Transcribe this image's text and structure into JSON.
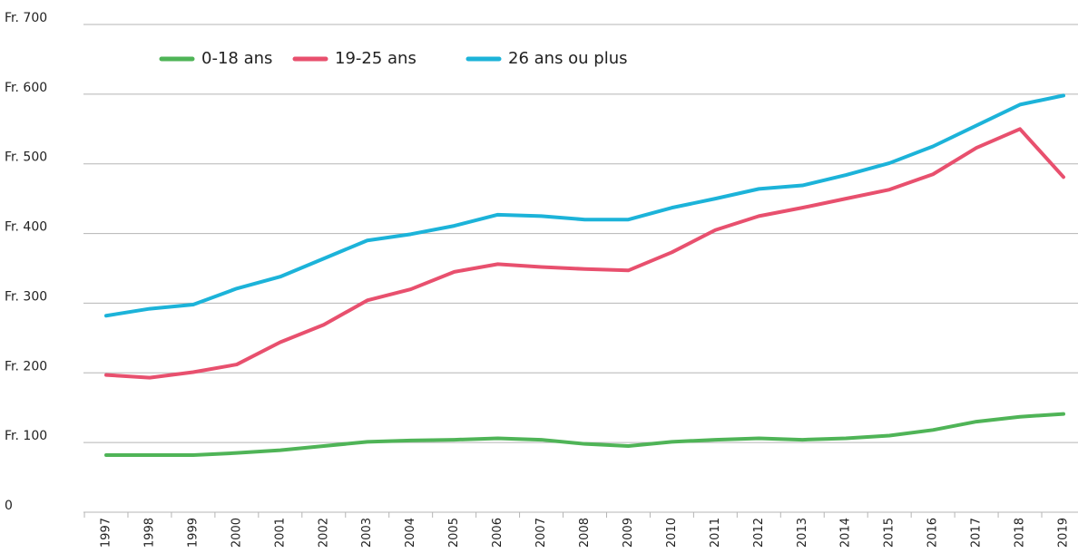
{
  "chart_data": {
    "type": "line",
    "categories": [
      "1997",
      "1998",
      "1999",
      "2000",
      "2001",
      "2002",
      "2003",
      "2004",
      "2005",
      "2006",
      "2007",
      "2008",
      "2009",
      "2010",
      "2011",
      "2012",
      "2013",
      "2014",
      "2015",
      "2016",
      "2017",
      "2018",
      "2019"
    ],
    "series": [
      {
        "name": "0-18 ans",
        "color": "#4fb457",
        "values": [
          82,
          82,
          82,
          85,
          89,
          95,
          101,
          103,
          104,
          106,
          104,
          98,
          95,
          101,
          104,
          106,
          104,
          106,
          110,
          118,
          130,
          137,
          141
        ]
      },
      {
        "name": "19-25 ans",
        "color": "#e8506e",
        "values": [
          197,
          193,
          201,
          212,
          244,
          269,
          304,
          320,
          345,
          356,
          352,
          349,
          347,
          373,
          405,
          425,
          437,
          450,
          463,
          485,
          523,
          550,
          481
        ]
      },
      {
        "name": "26 ans ou plus",
        "color": "#1cb3d9",
        "values": [
          282,
          292,
          298,
          321,
          338,
          364,
          390,
          399,
          411,
          427,
          425,
          420,
          420,
          437,
          450,
          464,
          469,
          484,
          501,
          525,
          555,
          585,
          598
        ]
      }
    ],
    "ylim": [
      0,
      700
    ],
    "yticks": [
      0,
      {
        "value": 100,
        "label": "Fr. 100"
      },
      {
        "value": 200,
        "label": "Fr. 200"
      },
      {
        "value": 300,
        "label": "Fr. 300"
      },
      {
        "value": 400,
        "label": "Fr. 400"
      },
      {
        "value": 500,
        "label": "Fr. 500"
      },
      {
        "value": 600,
        "label": "Fr. 600"
      },
      {
        "value": 700,
        "label": "Fr. 700"
      }
    ],
    "grid": true,
    "legend": "top-left"
  }
}
